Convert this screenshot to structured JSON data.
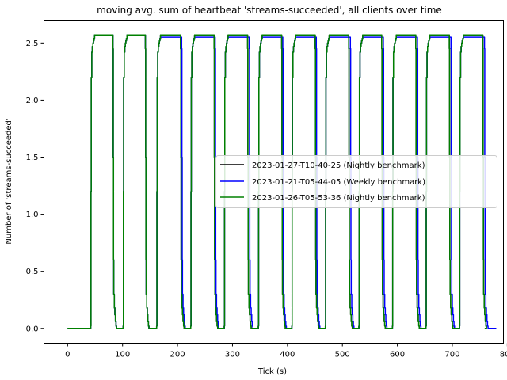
{
  "chart_data": {
    "type": "line",
    "title": "moving avg. sum of heartbeat 'streams-succeeded', all clients over time",
    "xlabel": "Tick (s)",
    "ylabel": "Number of 'streams-succeeded'",
    "xlim": [
      -43,
      793
    ],
    "ylim": [
      -0.13,
      2.7
    ],
    "xticks": [
      0,
      100,
      200,
      300,
      400,
      500,
      600,
      700,
      800
    ],
    "yticks": [
      0.0,
      0.5,
      1.0,
      1.5,
      2.0,
      2.5
    ],
    "xtick_labels": [
      "0",
      "100",
      "200",
      "300",
      "400",
      "500",
      "600",
      "700",
      "800"
    ],
    "ytick_labels": [
      "0.0",
      "0.5",
      "1.0",
      "1.5",
      "2.0",
      "2.5"
    ],
    "grid": false,
    "legend_position": "center-right",
    "series": [
      {
        "name": "2023-01-27-T10-40-25 (Nightly benchmark)",
        "color": "#000000",
        "cycles": [
          {
            "rise": 42,
            "fall": 82,
            "peak": 2.57
          },
          {
            "rise": 101,
            "fall": 141,
            "peak": 2.57
          },
          {
            "rise": 162,
            "fall": 205,
            "peak": 2.57
          },
          {
            "rise": 224,
            "fall": 266,
            "peak": 2.57
          },
          {
            "rise": 285,
            "fall": 327,
            "peak": 2.57
          },
          {
            "rise": 347,
            "fall": 389,
            "peak": 2.57
          },
          {
            "rise": 408,
            "fall": 450,
            "peak": 2.57
          },
          {
            "rise": 469,
            "fall": 511,
            "peak": 2.57
          },
          {
            "rise": 530,
            "fall": 571,
            "peak": 2.57
          },
          {
            "rise": 591,
            "fall": 633,
            "peak": 2.57
          },
          {
            "rise": 652,
            "fall": 694,
            "peak": 2.57
          },
          {
            "rise": 713,
            "fall": 755,
            "peak": 2.57
          }
        ],
        "x_end": 759
      },
      {
        "name": "2023-01-21-T05-44-05 (Weekly benchmark)",
        "color": "#0000ff",
        "cycles": [
          {
            "rise": 42,
            "fall": 82,
            "peak": 2.57
          },
          {
            "rise": 101,
            "fall": 141,
            "peak": 2.57
          },
          {
            "rise": 162,
            "fall": 207,
            "peak": 2.55
          },
          {
            "rise": 224,
            "fall": 268,
            "peak": 2.55
          },
          {
            "rise": 285,
            "fall": 330,
            "peak": 2.55
          },
          {
            "rise": 347,
            "fall": 391,
            "peak": 2.55
          },
          {
            "rise": 408,
            "fall": 452,
            "peak": 2.55
          },
          {
            "rise": 469,
            "fall": 514,
            "peak": 2.55
          },
          {
            "rise": 530,
            "fall": 574,
            "peak": 2.55
          },
          {
            "rise": 591,
            "fall": 636,
            "peak": 2.55
          },
          {
            "rise": 652,
            "fall": 697,
            "peak": 2.55
          },
          {
            "rise": 713,
            "fall": 758,
            "peak": 2.55
          }
        ],
        "x_end": 780
      },
      {
        "name": "2023-01-26-T05-53-36 (Nightly benchmark)",
        "color": "#008000",
        "cycles": [
          {
            "rise": 42,
            "fall": 82,
            "peak": 2.57
          },
          {
            "rise": 101,
            "fall": 141,
            "peak": 2.57
          },
          {
            "rise": 162,
            "fall": 205,
            "peak": 2.57
          },
          {
            "rise": 224,
            "fall": 266,
            "peak": 2.57
          },
          {
            "rise": 285,
            "fall": 327,
            "peak": 2.57
          },
          {
            "rise": 347,
            "fall": 389,
            "peak": 2.57
          },
          {
            "rise": 408,
            "fall": 450,
            "peak": 2.57
          },
          {
            "rise": 469,
            "fall": 511,
            "peak": 2.57
          },
          {
            "rise": 530,
            "fall": 571,
            "peak": 2.57
          },
          {
            "rise": 591,
            "fall": 633,
            "peak": 2.57
          },
          {
            "rise": 652,
            "fall": 694,
            "peak": 2.57
          },
          {
            "rise": 713,
            "fall": 755,
            "peak": 2.57
          }
        ],
        "x_end": 759
      }
    ]
  }
}
